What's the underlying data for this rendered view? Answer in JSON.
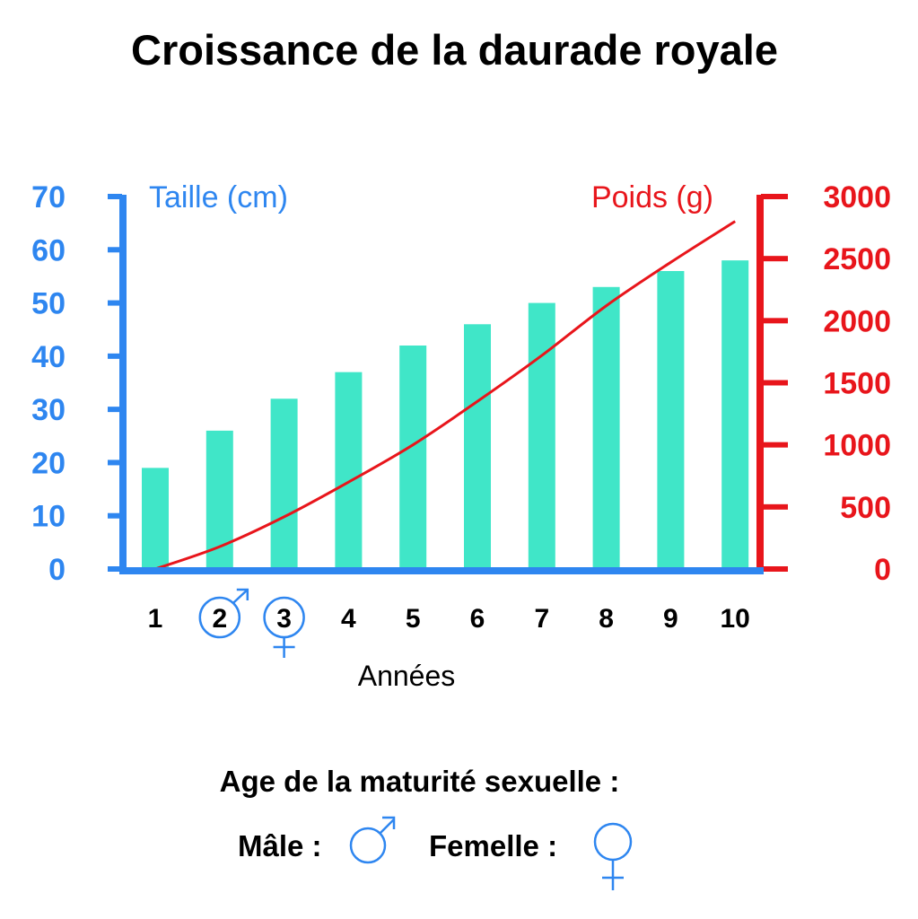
{
  "chart_data": {
    "type": "bar",
    "title": "Croissance de la daurade royale",
    "categories": [
      "1",
      "2",
      "3",
      "4",
      "5",
      "6",
      "7",
      "8",
      "9",
      "10"
    ],
    "series": [
      {
        "name": "Taille (cm)",
        "type": "bar",
        "axis": "left",
        "values": [
          19,
          26,
          32,
          37,
          42,
          46,
          50,
          53,
          56,
          58
        ],
        "color": "#40E6C8"
      },
      {
        "name": "Poids (g)",
        "type": "line",
        "axis": "right",
        "values": [
          0,
          180,
          420,
          700,
          1000,
          1350,
          1720,
          2120,
          2470,
          2800
        ],
        "color": "#E8151B"
      }
    ],
    "xlabel": "Années",
    "ylabel": "Taille (cm)",
    "y2label": "Poids (g)",
    "ylim": [
      0,
      70
    ],
    "y2lim": [
      0,
      3000
    ],
    "yticks": [
      "0",
      "10",
      "20",
      "30",
      "40",
      "50",
      "60",
      "70"
    ],
    "y2ticks": [
      "0",
      "500",
      "1000",
      "1500",
      "2000",
      "2500",
      "3000"
    ],
    "annotations": [
      {
        "category": "2",
        "symbol": "♂",
        "meaning": "male-maturity"
      },
      {
        "category": "3",
        "symbol": "♀",
        "meaning": "female-maturity"
      }
    ],
    "grid": false,
    "colors": {
      "left_axis": "#2E86F0",
      "right_axis": "#E8151B",
      "bars": "#40E6C8",
      "symbols": "#2E86F0"
    }
  },
  "maturity": {
    "heading": "Age de la maturité sexuelle :",
    "male_label": "Mâle :",
    "female_label": "Femelle :"
  }
}
